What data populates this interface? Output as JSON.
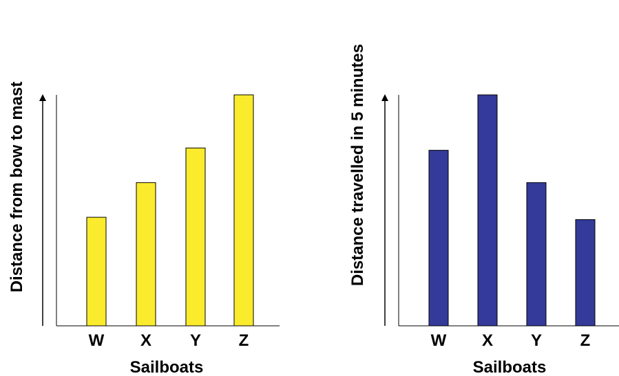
{
  "chart_data": [
    {
      "type": "bar",
      "categories": [
        "W",
        "X",
        "Y",
        "Z"
      ],
      "values": [
        47,
        62,
        77,
        100
      ],
      "xlabel": "Sailboats",
      "ylabel": "Distance from bow to mast",
      "ylim": [
        0,
        100
      ],
      "y_ticks_shown": false,
      "grid": false,
      "bar_color": "#FAEB2D",
      "bar_stroke": "#000000"
    },
    {
      "type": "bar",
      "categories": [
        "W",
        "X",
        "Y",
        "Z"
      ],
      "values": [
        76,
        100,
        62,
        46
      ],
      "xlabel": "Sailboats",
      "ylabel": "Distance travelled in 5 minutes",
      "ylim": [
        0,
        100
      ],
      "y_ticks_shown": false,
      "grid": false,
      "bar_color": "#333A99",
      "bar_stroke": "#000000"
    }
  ]
}
